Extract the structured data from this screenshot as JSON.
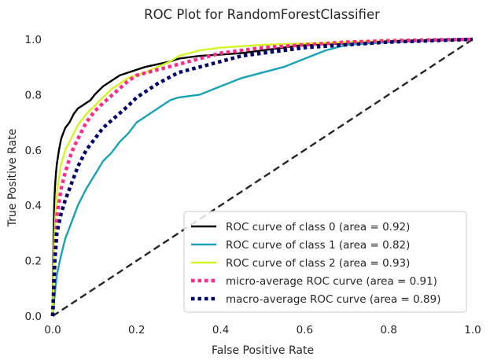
{
  "chart_data": {
    "type": "line",
    "title": "ROC Plot for RandomForestClassifier",
    "xlabel": "False Positive Rate",
    "ylabel": "True Positive Rate",
    "xlim": [
      0.0,
      1.0
    ],
    "ylim": [
      0.0,
      1.0
    ],
    "xticks": [
      0.0,
      0.2,
      0.4,
      0.6,
      0.8,
      1.0
    ],
    "yticks": [
      0.0,
      0.2,
      0.4,
      0.6,
      0.8,
      1.0
    ],
    "xtick_labels": [
      "0.0",
      "0.2",
      "0.4",
      "0.6",
      "0.8",
      "1.0"
    ],
    "ytick_labels": [
      "0.0",
      "0.2",
      "0.4",
      "0.6",
      "0.8",
      "1.0"
    ],
    "grid": false,
    "legend_position": "lower-right",
    "series": [
      {
        "name": "ROC curve of class 0 (area = 0.92)",
        "color": "#000000",
        "style": "solid",
        "x": [
          0.0,
          0.002,
          0.004,
          0.006,
          0.008,
          0.01,
          0.015,
          0.02,
          0.025,
          0.03,
          0.04,
          0.05,
          0.06,
          0.07,
          0.08,
          0.09,
          0.1,
          0.12,
          0.14,
          0.16,
          0.18,
          0.2,
          0.22,
          0.25,
          0.28,
          0.3,
          0.35,
          0.4,
          0.45,
          0.5,
          0.55,
          0.6,
          0.7,
          0.8,
          0.9,
          1.0
        ],
        "y": [
          0.0,
          0.3,
          0.42,
          0.48,
          0.52,
          0.55,
          0.6,
          0.64,
          0.66,
          0.68,
          0.7,
          0.73,
          0.75,
          0.76,
          0.77,
          0.78,
          0.8,
          0.83,
          0.85,
          0.87,
          0.88,
          0.89,
          0.9,
          0.91,
          0.92,
          0.93,
          0.94,
          0.945,
          0.95,
          0.96,
          0.97,
          0.98,
          0.985,
          0.99,
          0.995,
          1.0
        ]
      },
      {
        "name": "ROC curve of class 1 (area = 0.82)",
        "color": "#17a2b8",
        "style": "solid",
        "x": [
          0.0,
          0.005,
          0.01,
          0.02,
          0.03,
          0.04,
          0.05,
          0.06,
          0.08,
          0.1,
          0.12,
          0.14,
          0.16,
          0.18,
          0.2,
          0.22,
          0.25,
          0.28,
          0.3,
          0.35,
          0.4,
          0.45,
          0.5,
          0.55,
          0.6,
          0.65,
          0.7,
          0.8,
          0.9,
          1.0
        ],
        "y": [
          0.0,
          0.08,
          0.15,
          0.22,
          0.28,
          0.32,
          0.36,
          0.4,
          0.46,
          0.51,
          0.56,
          0.59,
          0.63,
          0.66,
          0.7,
          0.72,
          0.75,
          0.78,
          0.79,
          0.8,
          0.83,
          0.86,
          0.88,
          0.9,
          0.93,
          0.96,
          0.98,
          0.99,
          0.995,
          1.0
        ]
      },
      {
        "name": "ROC curve of class 2 (area = 0.93)",
        "color": "#d4f524",
        "style": "solid",
        "x": [
          0.0,
          0.003,
          0.006,
          0.01,
          0.015,
          0.02,
          0.03,
          0.04,
          0.05,
          0.06,
          0.08,
          0.1,
          0.12,
          0.14,
          0.16,
          0.18,
          0.2,
          0.22,
          0.25,
          0.28,
          0.3,
          0.35,
          0.4,
          0.5,
          0.6,
          0.7,
          0.8,
          0.9,
          1.0
        ],
        "y": [
          0.0,
          0.25,
          0.35,
          0.45,
          0.5,
          0.55,
          0.6,
          0.63,
          0.66,
          0.69,
          0.73,
          0.76,
          0.79,
          0.82,
          0.84,
          0.86,
          0.87,
          0.88,
          0.9,
          0.92,
          0.94,
          0.96,
          0.97,
          0.98,
          0.985,
          0.99,
          0.995,
          0.998,
          1.0
        ]
      },
      {
        "name": "micro-average ROC curve (area = 0.91)",
        "color": "#ff2a8a",
        "style": "dotted",
        "x": [
          0.0,
          0.005,
          0.01,
          0.02,
          0.03,
          0.04,
          0.05,
          0.06,
          0.08,
          0.1,
          0.12,
          0.15,
          0.18,
          0.2,
          0.25,
          0.3,
          0.35,
          0.4,
          0.5,
          0.6,
          0.7,
          0.8,
          0.9,
          1.0
        ],
        "y": [
          0.0,
          0.2,
          0.36,
          0.46,
          0.52,
          0.57,
          0.61,
          0.64,
          0.7,
          0.74,
          0.77,
          0.81,
          0.85,
          0.87,
          0.89,
          0.91,
          0.93,
          0.95,
          0.97,
          0.98,
          0.99,
          0.995,
          0.998,
          1.0
        ]
      },
      {
        "name": "macro-average ROC curve (area = 0.89)",
        "color": "#00006b",
        "style": "dotted",
        "x": [
          0.0,
          0.005,
          0.01,
          0.02,
          0.03,
          0.04,
          0.05,
          0.06,
          0.08,
          0.1,
          0.12,
          0.15,
          0.18,
          0.2,
          0.22,
          0.25,
          0.3,
          0.35,
          0.4,
          0.45,
          0.5,
          0.6,
          0.7,
          0.8,
          0.9,
          1.0
        ],
        "y": [
          0.0,
          0.2,
          0.3,
          0.37,
          0.42,
          0.46,
          0.5,
          0.54,
          0.6,
          0.64,
          0.68,
          0.72,
          0.76,
          0.79,
          0.81,
          0.84,
          0.88,
          0.9,
          0.92,
          0.94,
          0.95,
          0.97,
          0.98,
          0.99,
          0.995,
          1.0
        ]
      },
      {
        "name": "",
        "color": "#262626",
        "style": "dashed",
        "x": [
          0.0,
          1.0
        ],
        "y": [
          0.0,
          1.0
        ]
      }
    ]
  }
}
